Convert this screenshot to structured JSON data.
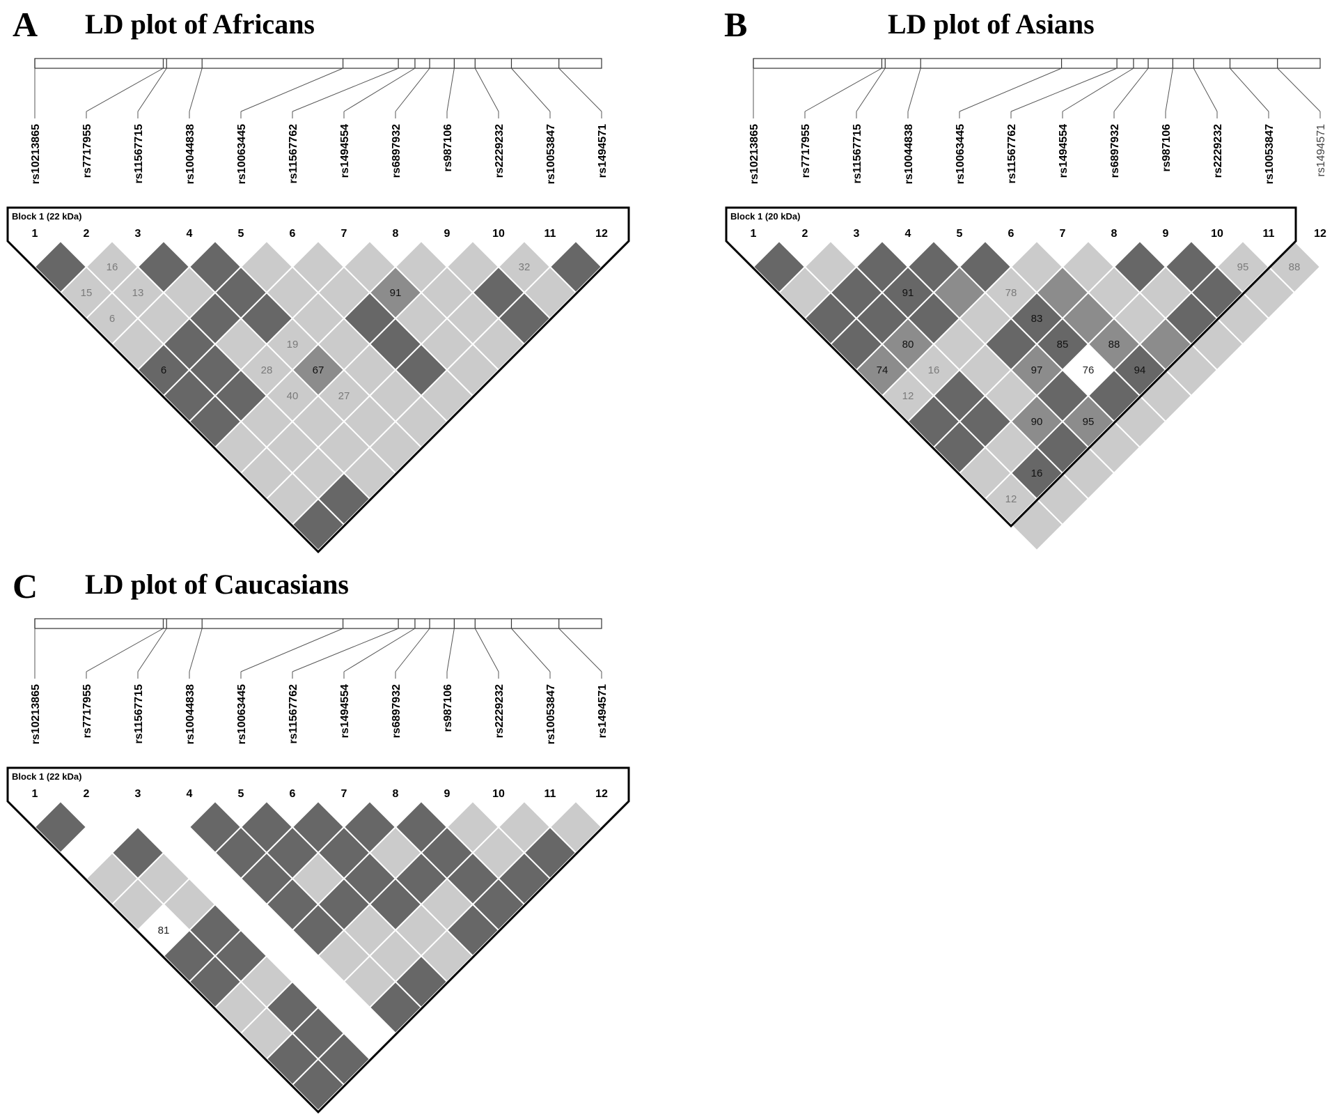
{
  "colors": {
    "dark": "#676767",
    "medium": "#8c8c8c",
    "light": "#cbcbcb",
    "empty": "#ffffff",
    "grid": "#ffffff",
    "outline": "#000000"
  },
  "snps": [
    "rs10213865",
    "rs7717955",
    "rs11567715",
    "rs10044838",
    "rs10063445",
    "rs11567762",
    "rs1494554",
    "rs6897932",
    "rs987106",
    "rs2229232",
    "rs10053847",
    "rs1494571"
  ],
  "indices": [
    "1",
    "2",
    "3",
    "4",
    "5",
    "6",
    "7",
    "8",
    "9",
    "10",
    "11",
    "12"
  ],
  "panels": [
    {
      "letter": "A",
      "title": "LD plot of Africans",
      "block_label": "Block 1 (22 kDa)",
      "block_range": [
        1,
        12
      ],
      "cells": [
        [
          "d",
          "l",
          "d",
          "d",
          "l",
          "l",
          "l",
          "l",
          "l",
          "l",
          "d"
        ],
        [
          "l",
          "l",
          "l",
          "d",
          "l",
          "l",
          "m",
          "l",
          "d",
          "l"
        ],
        [
          "l",
          "l",
          "d",
          "d",
          "l",
          "d",
          "l",
          "l",
          "d"
        ],
        [
          "l",
          "d",
          "l",
          "l",
          "l",
          "d",
          "l",
          "l"
        ],
        [
          "d",
          "d",
          "l",
          "m",
          "l",
          "d",
          "l"
        ],
        [
          "d",
          "d",
          "l",
          "l",
          "l",
          "l"
        ],
        [
          "d",
          "l",
          "l",
          "l",
          "l"
        ],
        [
          "l",
          "l",
          "l",
          "l"
        ],
        [
          "l",
          "l",
          "l"
        ],
        [
          "l",
          "d"
        ],
        [
          "d"
        ]
      ],
      "values": [
        [
          "",
          "16",
          "",
          "",
          "",
          "",
          "",
          "",
          "",
          "32",
          ""
        ],
        [
          "15",
          "13",
          "",
          "",
          "",
          "",
          "91",
          "",
          "",
          ""
        ],
        [
          "6",
          "",
          "",
          "",
          "",
          "",
          "",
          "",
          ""
        ],
        [
          "",
          "",
          "",
          "19",
          "",
          "",
          "",
          ""
        ],
        [
          "6",
          "",
          "28",
          "67",
          "",
          "",
          ""
        ],
        [
          "",
          "",
          "40",
          "27",
          "",
          ""
        ],
        [
          "",
          "",
          "",
          "",
          ""
        ],
        [
          "",
          "",
          "",
          ""
        ],
        [
          "",
          "",
          ""
        ],
        [
          "",
          ""
        ],
        [
          ""
        ]
      ]
    },
    {
      "letter": "B",
      "title": "LD plot of Asians",
      "block_label": "Block 1 (20 kDa)",
      "block_range": [
        1,
        11
      ],
      "cells": [
        [
          "d",
          "l",
          "d",
          "d",
          "d",
          "l",
          "l",
          "d",
          "d",
          "l",
          "l"
        ],
        [
          "l",
          "d",
          "d",
          "m",
          "l",
          "m",
          "l",
          "l",
          "d",
          "l"
        ],
        [
          "d",
          "d",
          "d",
          "l",
          "d",
          "m",
          "l",
          "d",
          "l"
        ],
        [
          "d",
          "m",
          "l",
          "d",
          "d",
          "m",
          "m",
          "l"
        ],
        [
          "m",
          "l",
          "l",
          "m",
          "e",
          "d",
          "l"
        ],
        [
          "l",
          "d",
          "l",
          "d",
          "d",
          "l"
        ],
        [
          "d",
          "d",
          "m",
          "m",
          "l"
        ],
        [
          "d",
          "l",
          "d",
          "l"
        ],
        [
          "l",
          "d",
          "l"
        ],
        [
          "l",
          "l"
        ],
        [
          "l"
        ]
      ],
      "values": [
        [
          "",
          "",
          "",
          "",
          "",
          "",
          "",
          "",
          "",
          "95",
          "88"
        ],
        [
          "",
          "",
          "91",
          "",
          "78",
          "",
          "",
          "",
          "",
          ""
        ],
        [
          "",
          "",
          "",
          "",
          "83",
          "",
          "",
          "",
          ""
        ],
        [
          "",
          "80",
          "",
          "",
          "85",
          "88",
          "",
          ""
        ],
        [
          "74",
          "16",
          "",
          "97",
          "76",
          "94",
          ""
        ],
        [
          "12",
          "",
          "",
          "",
          "",
          ""
        ],
        [
          "",
          "",
          "90",
          "95",
          ""
        ],
        [
          "",
          "",
          "",
          ""
        ],
        [
          "",
          "16",
          ""
        ],
        [
          "12",
          ""
        ],
        [
          ""
        ]
      ]
    },
    {
      "letter": "C",
      "title": "LD plot of Caucasians",
      "block_label": "Block 1 (22 kDa)",
      "block_range": [
        1,
        12
      ],
      "cells": [
        [
          "d",
          "e",
          "e",
          "d",
          "d",
          "d",
          "d",
          "d",
          "l",
          "l",
          "l"
        ],
        [
          "e",
          "d",
          "e",
          "d",
          "d",
          "d",
          "l",
          "d",
          "l",
          "d"
        ],
        [
          "l",
          "l",
          "e",
          "d",
          "l",
          "d",
          "d",
          "d",
          "d"
        ],
        [
          "l",
          "l",
          "e",
          "d",
          "d",
          "d",
          "l",
          "d"
        ],
        [
          "e",
          "d",
          "e",
          "d",
          "l",
          "l",
          "d"
        ],
        [
          "d",
          "d",
          "e",
          "l",
          "l",
          "l"
        ],
        [
          "d",
          "l",
          "e",
          "l",
          "d"
        ],
        [
          "l",
          "d",
          "e",
          "d"
        ],
        [
          "l",
          "d",
          "e"
        ],
        [
          "d",
          "d"
        ],
        [
          "d"
        ]
      ],
      "values": [
        [
          "",
          "",
          "",
          "",
          "",
          "",
          "",
          "",
          "",
          "",
          ""
        ],
        [
          "",
          "",
          "",
          "",
          "",
          "",
          "",
          "",
          "",
          ""
        ],
        [
          "",
          "",
          "",
          "",
          "",
          "",
          "",
          "",
          ""
        ],
        [
          "",
          "",
          "",
          "",
          "",
          "",
          "",
          ""
        ],
        [
          "81",
          "",
          "",
          "",
          "",
          "",
          ""
        ],
        [
          "",
          "",
          "",
          "",
          "",
          ""
        ],
        [
          "",
          "",
          "",
          "",
          ""
        ],
        [
          "",
          "",
          "",
          ""
        ],
        [
          "",
          "",
          ""
        ],
        [
          "",
          ""
        ],
        [
          ""
        ]
      ]
    }
  ]
}
